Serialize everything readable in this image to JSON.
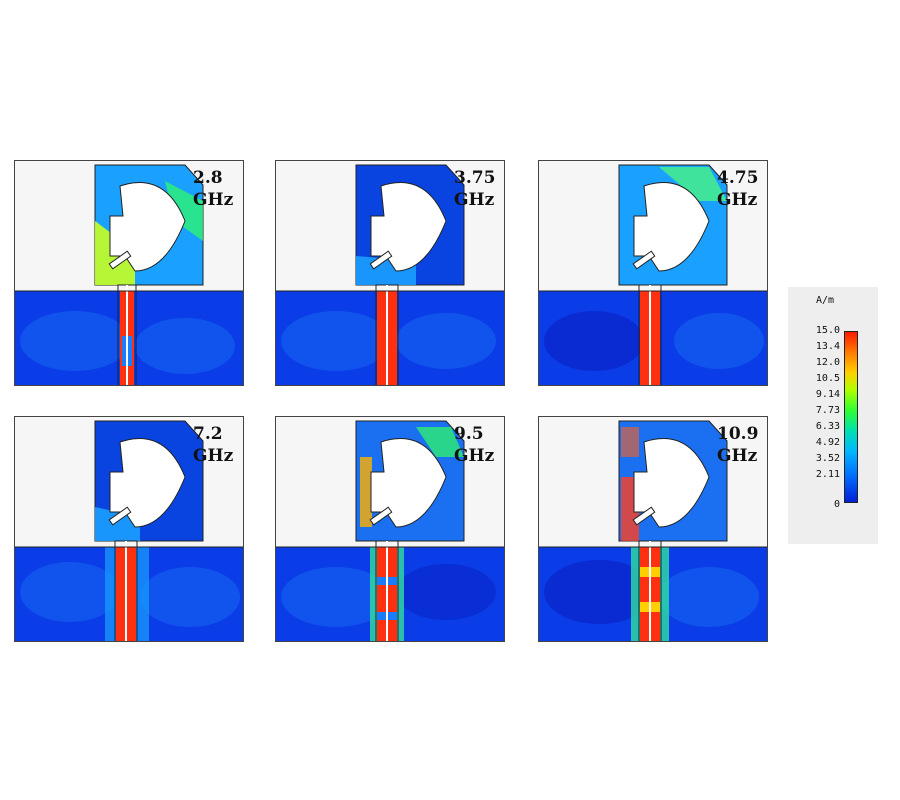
{
  "panels": [
    {
      "id": "p1",
      "label_line1": "2.8",
      "label_line2": "GHz"
    },
    {
      "id": "p2",
      "label_line1": "3.75",
      "label_line2": "GHz"
    },
    {
      "id": "p3",
      "label_line1": "4.75",
      "label_line2": "GHz"
    },
    {
      "id": "p4",
      "label_line1": "7.2",
      "label_line2": "GHz"
    },
    {
      "id": "p5",
      "label_line1": "9.5",
      "label_line2": "GHz"
    },
    {
      "id": "p6",
      "label_line1": "10.9",
      "label_line2": "GHz"
    }
  ],
  "legend": {
    "unit": "A/m",
    "ticks": [
      "15.0",
      "13.4",
      "12.0",
      "10.5",
      "9.14",
      "7.73",
      "6.33",
      "4.92",
      "3.52",
      "2.11",
      "0"
    ]
  },
  "colors": {
    "low": "#0a2fe0",
    "mid": "#00c8ff",
    "high": "#ff1a00"
  }
}
